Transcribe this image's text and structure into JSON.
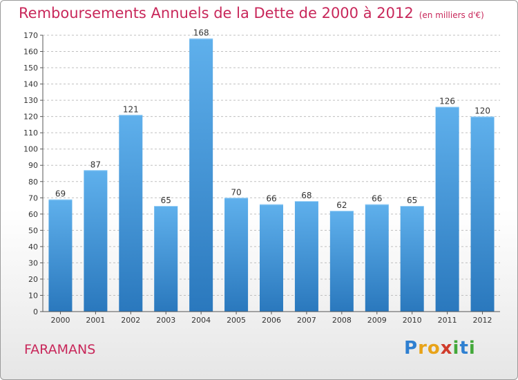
{
  "title": "Remboursements Annuels de la Dette de 2000 à 2012",
  "subtitle": "(en milliers d'€)",
  "commune": "FARAMANS",
  "logo": "Proxiti",
  "colors": {
    "bar_light": "#5fb0ec",
    "bar_dark": "#2a78bd",
    "title": "#c8275a"
  },
  "chart_data": {
    "type": "bar",
    "categories": [
      "2000",
      "2001",
      "2002",
      "2003",
      "2004",
      "2005",
      "2006",
      "2007",
      "2008",
      "2009",
      "2010",
      "2011",
      "2012"
    ],
    "values": [
      69,
      87,
      121,
      65,
      168,
      70,
      66,
      68,
      62,
      66,
      65,
      126,
      120
    ],
    "ylim": [
      0,
      170
    ],
    "yticks": [
      0,
      10,
      20,
      30,
      40,
      50,
      60,
      70,
      80,
      90,
      100,
      110,
      120,
      130,
      140,
      150,
      160,
      170
    ],
    "grid": true
  }
}
